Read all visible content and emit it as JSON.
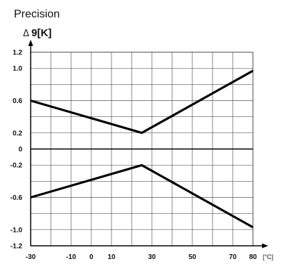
{
  "chart_data": {
    "type": "line",
    "title": "Precision",
    "ylabel_symbol": "Δ",
    "ylabel": "9[K]",
    "xlabel": "[°C]",
    "xlim": [
      -30,
      80
    ],
    "ylim": [
      -1.2,
      1.2
    ],
    "x_ticks": [
      -30,
      -10,
      0,
      10,
      30,
      50,
      70,
      80
    ],
    "x_tick_labels": [
      "-30",
      "-10",
      "0",
      "10",
      "30",
      "50",
      "70",
      "80"
    ],
    "y_ticks": [
      1.2,
      1.0,
      0.6,
      0.2,
      0,
      -0.2,
      -0.6,
      -1.0,
      -1.2
    ],
    "y_tick_labels": [
      "1.2",
      "1.0",
      "0.6",
      "0.2",
      "0",
      "-0.2",
      "-0.6",
      "-1.0",
      "-1.2"
    ],
    "grid": true,
    "series": [
      {
        "values": [
          [
            -30,
            0.6
          ],
          [
            25,
            0.2
          ],
          [
            80,
            0.97
          ]
        ]
      },
      {
        "values": [
          [
            -30,
            -0.6
          ],
          [
            25,
            -0.2
          ],
          [
            80,
            -0.97
          ]
        ]
      }
    ]
  }
}
